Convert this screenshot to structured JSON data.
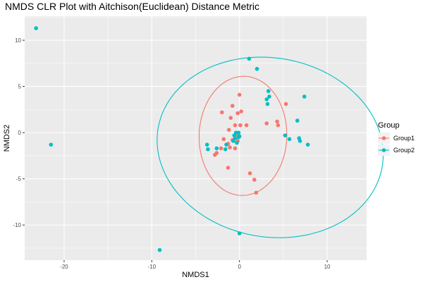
{
  "chart_data": {
    "type": "scatter",
    "title": "NMDS CLR Plot with Aitchison(Euclidean) Distance Metric",
    "xlabel": "NMDS1",
    "ylabel": "NMDS2",
    "xlim": [
      -24.5,
      14.5
    ],
    "ylim": [
      -13.8,
      12.6
    ],
    "x_ticks": [
      -20,
      -10,
      0,
      10
    ],
    "y_ticks": [
      -10,
      -5,
      0,
      5,
      10
    ],
    "x_tick_labels": [
      "-20",
      "-10",
      "0",
      "10"
    ],
    "y_tick_labels": [
      "-10",
      "-5",
      "0",
      "5",
      "10"
    ],
    "grid": true,
    "legend": {
      "title": "Group",
      "position": "right"
    },
    "series": [
      {
        "name": "Group1",
        "color": "#F8766D",
        "points": [
          [
            0.0,
            4.1
          ],
          [
            -2.0,
            2.2
          ],
          [
            -0.8,
            2.9
          ],
          [
            -0.2,
            2.1
          ],
          [
            0.2,
            2.3
          ],
          [
            -1.0,
            1.6
          ],
          [
            5.3,
            3.1
          ],
          [
            4.3,
            1.2
          ],
          [
            4.4,
            0.8
          ],
          [
            3.1,
            1.0
          ],
          [
            0.8,
            0.8
          ],
          [
            0.1,
            0.8
          ],
          [
            -0.5,
            0.8
          ],
          [
            -1.2,
            0.3
          ],
          [
            -0.3,
            -0.2
          ],
          [
            -1.8,
            -0.7
          ],
          [
            -0.8,
            -0.8
          ],
          [
            -0.2,
            -0.9
          ],
          [
            -1.3,
            -1.2
          ],
          [
            -1.1,
            -1.6
          ],
          [
            -2.1,
            -1.7
          ],
          [
            -0.5,
            -1.7
          ],
          [
            -2.6,
            -2.2
          ],
          [
            -2.8,
            -2.4
          ],
          [
            -1.3,
            -3.8
          ],
          [
            1.2,
            -4.4
          ],
          [
            1.7,
            -5.1
          ],
          [
            1.9,
            -6.5
          ]
        ],
        "ellipse": {
          "cx": 0.4,
          "cy": -0.35,
          "rx": 5.0,
          "ry": 6.45,
          "angle": -2
        }
      },
      {
        "name": "Group2",
        "color": "#00BFC4",
        "points": [
          [
            -23.2,
            11.3
          ],
          [
            -21.5,
            -1.3
          ],
          [
            -9.1,
            -12.7
          ],
          [
            0.0,
            -10.9
          ],
          [
            1.1,
            8.0
          ],
          [
            2.0,
            6.9
          ],
          [
            7.4,
            3.9
          ],
          [
            3.3,
            4.5
          ],
          [
            3.1,
            3.6
          ],
          [
            3.4,
            3.9
          ],
          [
            3.2,
            3.1
          ],
          [
            6.6,
            1.3
          ],
          [
            5.2,
            -0.3
          ],
          [
            5.7,
            -0.7
          ],
          [
            6.8,
            -0.6
          ],
          [
            6.9,
            -0.9
          ],
          [
            7.8,
            -1.3
          ],
          [
            -0.4,
            0.0
          ],
          [
            -0.1,
            0.0
          ],
          [
            -0.6,
            -0.3
          ],
          [
            0.0,
            -0.4
          ],
          [
            -0.5,
            -0.6
          ],
          [
            -0.7,
            -0.9
          ],
          [
            -0.3,
            -1.1
          ],
          [
            -1.5,
            -1.3
          ],
          [
            -2.6,
            -1.7
          ],
          [
            -3.7,
            -1.3
          ],
          [
            -3.6,
            -1.8
          ],
          [
            -1.6,
            -1.8
          ],
          [
            -0.1,
            -0.5
          ]
        ],
        "ellipse": {
          "cx": 3.5,
          "cy": -1.6,
          "rx": 12.95,
          "ry": 9.7,
          "angle": -8
        }
      }
    ]
  }
}
